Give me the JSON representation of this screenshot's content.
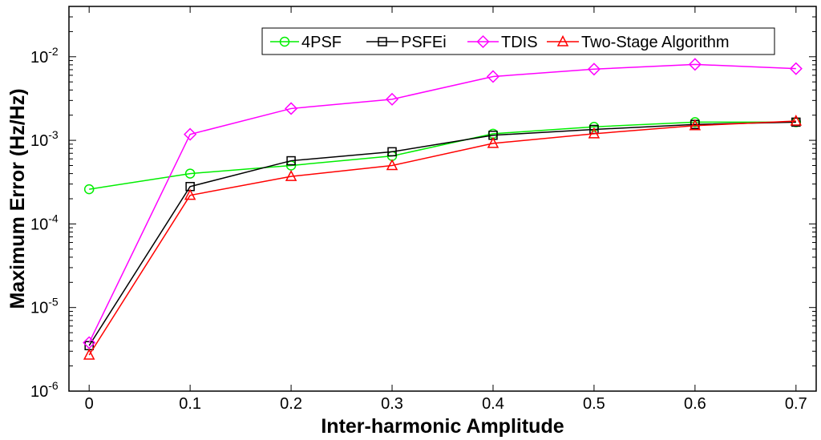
{
  "chart_data": {
    "type": "line",
    "title": "",
    "xlabel": "Inter-harmonic Amplitude",
    "ylabel": "Maximum Error (Hz/Hz)",
    "yscale": "log",
    "xlim": [
      -0.02,
      0.72
    ],
    "ylim": [
      1e-06,
      0.04
    ],
    "x": [
      0,
      0.1,
      0.2,
      0.3,
      0.4,
      0.5,
      0.6,
      0.7
    ],
    "x_tick_labels": [
      "0",
      "0.1",
      "0.2",
      "0.3",
      "0.4",
      "0.5",
      "0.6",
      "0.7"
    ],
    "y_ticks": [
      {
        "value": 1e-06,
        "base": "10",
        "exp": "-6"
      },
      {
        "value": 1e-05,
        "base": "10",
        "exp": "-5"
      },
      {
        "value": 0.0001,
        "base": "10",
        "exp": "-4"
      },
      {
        "value": 0.001,
        "base": "10",
        "exp": "-3"
      },
      {
        "value": 0.01,
        "base": "10",
        "exp": "-2"
      }
    ],
    "grid": false,
    "legend_position": "top-right",
    "series": [
      {
        "name": "4PSF",
        "color": "#00ee00",
        "marker": "circle",
        "values": [
          0.00026,
          0.0004,
          0.0005,
          0.00065,
          0.0012,
          0.00145,
          0.00165,
          0.00165
        ]
      },
      {
        "name": "PSFEi",
        "color": "#000000",
        "marker": "square",
        "values": [
          3.5e-06,
          0.00028,
          0.00057,
          0.00073,
          0.00115,
          0.00135,
          0.00155,
          0.00165
        ]
      },
      {
        "name": "TDIS",
        "color": "#ff00ff",
        "marker": "diamond",
        "values": [
          3.8e-06,
          0.00118,
          0.0024,
          0.0031,
          0.0058,
          0.0071,
          0.0081,
          0.0072
        ]
      },
      {
        "name": "Two-Stage Algorithm",
        "color": "#ff0000",
        "marker": "triangle",
        "values": [
          2.7e-06,
          0.00022,
          0.00037,
          0.0005,
          0.00092,
          0.0012,
          0.0015,
          0.0017
        ]
      }
    ]
  }
}
